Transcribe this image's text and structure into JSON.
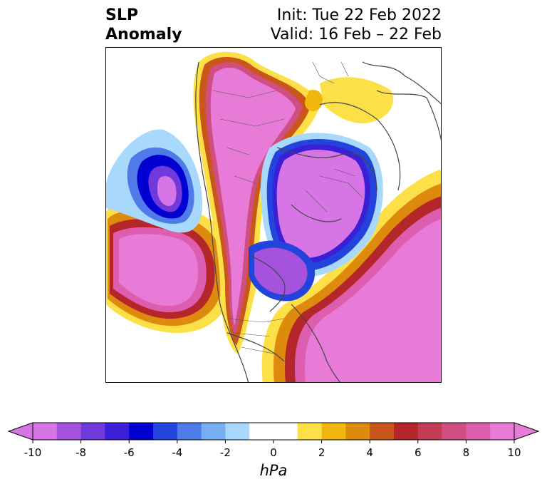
{
  "title": {
    "left_line1": "SLP",
    "left_line2": "Anomaly",
    "init": "Init: Tue 22 Feb 2022",
    "valid": "Valid: 16 Feb – 22 Feb"
  },
  "colorbar": {
    "units": "hPa",
    "min": -10,
    "max": 10,
    "step": 1,
    "extend": "both",
    "tick_labels": [
      "-10",
      "-8",
      "-6",
      "-4",
      "-2",
      "0",
      "2",
      "4",
      "6",
      "8",
      "10"
    ],
    "colors": [
      "#d875e6",
      "#a552df",
      "#6f39dc",
      "#3a1fd6",
      "#0000d2",
      "#2244dc",
      "#4e7be8",
      "#75aef2",
      "#a8d8fb",
      "#ffffff",
      "#ffffff",
      "#fde048",
      "#f2b70e",
      "#de8a0e",
      "#c9561a",
      "#b5262a",
      "#c23e57",
      "#cf4f82",
      "#dd5eaf",
      "#e87bd8"
    ]
  },
  "map": {
    "projection": "polar-stereographic-north",
    "features": [
      {
        "name": "west-pacific-positive",
        "sign": "positive"
      },
      {
        "name": "siberia-eurasia-positive",
        "sign": "positive"
      },
      {
        "name": "north-atlantic-positive",
        "sign": "positive"
      },
      {
        "name": "arctic-negative",
        "sign": "negative"
      },
      {
        "name": "north-pacific-negative",
        "sign": "negative"
      },
      {
        "name": "hudson-bay-negative",
        "sign": "negative"
      },
      {
        "name": "scandinavia-positive",
        "sign": "positive"
      }
    ]
  }
}
